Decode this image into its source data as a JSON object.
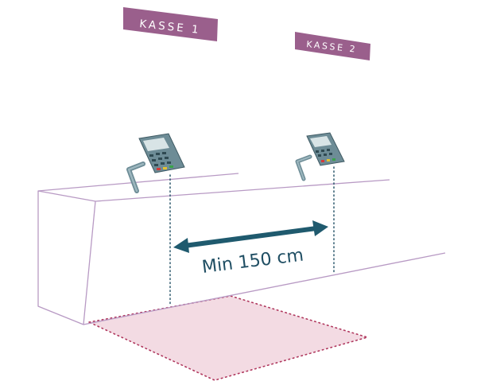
{
  "signs": [
    {
      "label": "KASSE 1"
    },
    {
      "label": "KASSE 2"
    }
  ],
  "distance": {
    "label": "Min 150 cm"
  },
  "icons": {
    "payment_terminal": "card-terminal-icon",
    "double_arrow": "double-arrow-icon"
  },
  "colors": {
    "sign_fill": "#9a5f8c",
    "sign_text": "#ffffff",
    "counter_outline": "#b89ac4",
    "zone_fill": "#f3dbe3",
    "zone_dots": "#b0385e",
    "guide_dots": "#1f4e63",
    "arrow": "#1f5a6e",
    "terminal_body": "#6d8c96",
    "terminal_screen": "#d8e4e6"
  }
}
